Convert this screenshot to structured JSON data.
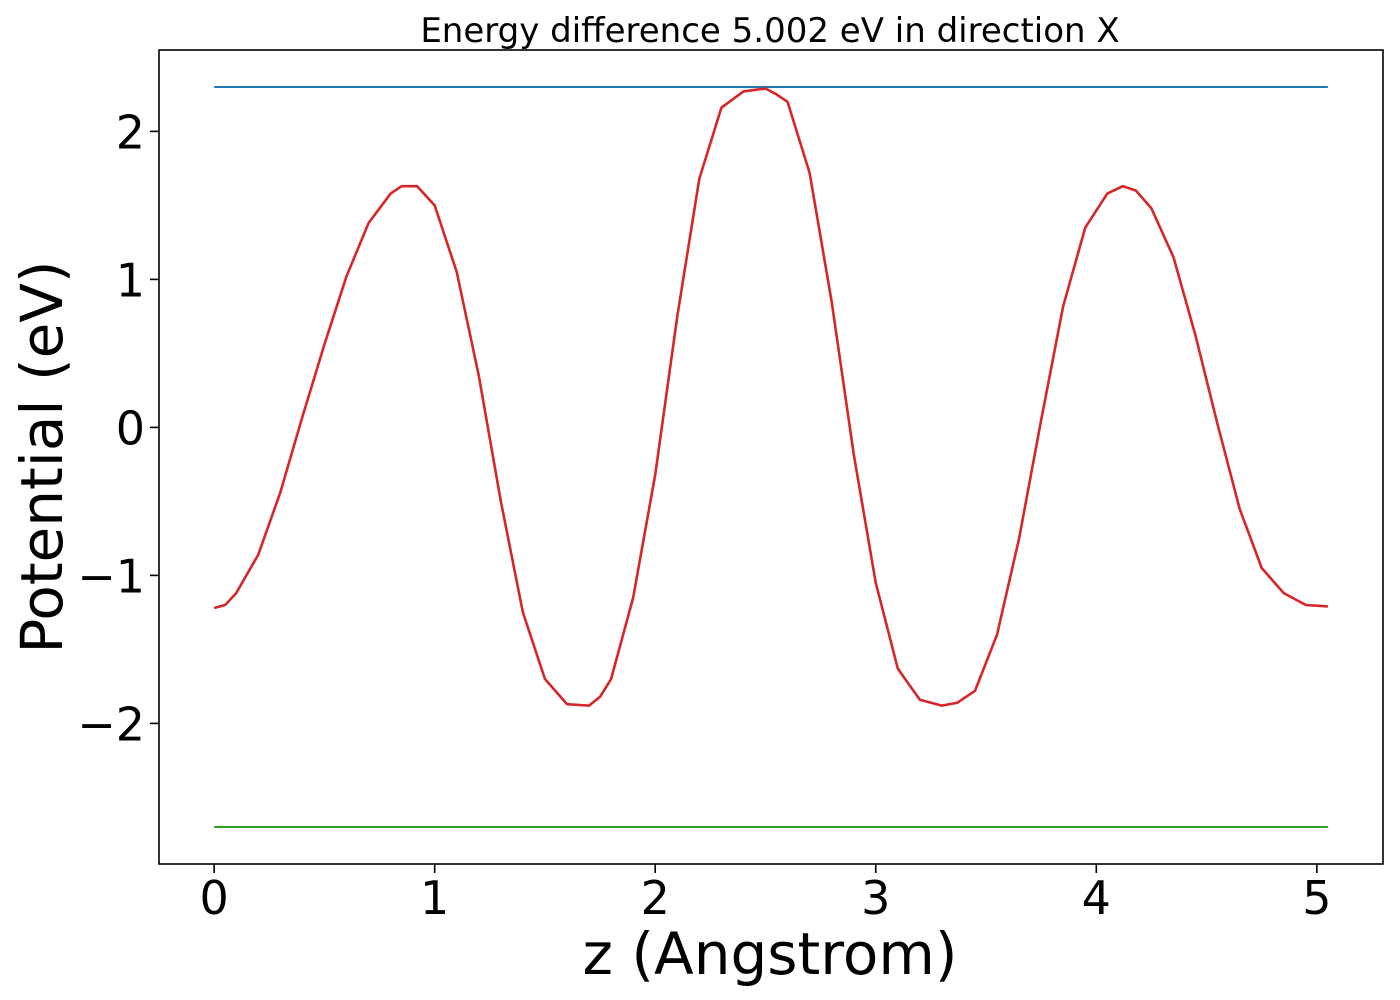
{
  "chart_data": {
    "type": "line",
    "title": "Energy difference 5.002 eV in direction X",
    "xlabel": "z (Angstrom)",
    "ylabel": "Potential (eV)",
    "xlim": [
      -0.25,
      5.3
    ],
    "ylim": [
      -2.95,
      2.55
    ],
    "x_ticks": [
      0,
      1,
      2,
      3,
      4,
      5
    ],
    "x_tick_labels": [
      "0",
      "1",
      "2",
      "3",
      "4",
      "5"
    ],
    "y_ticks": [
      -2,
      -1,
      0,
      1,
      2
    ],
    "y_tick_labels": [
      "−2",
      "−1",
      "0",
      "1",
      "2"
    ],
    "grid": false,
    "series": [
      {
        "color": "#1f77b4",
        "x": [
          0,
          5.05
        ],
        "y": [
          2.3,
          2.3
        ]
      },
      {
        "color": "#2ca02c",
        "x": [
          0,
          5.05
        ],
        "y": [
          -2.7,
          -2.7
        ]
      },
      {
        "color": "#d62728",
        "x": [
          0,
          0.05,
          0.1,
          0.2,
          0.3,
          0.4,
          0.5,
          0.6,
          0.7,
          0.8,
          0.85,
          0.92,
          1.0,
          1.1,
          1.2,
          1.3,
          1.4,
          1.5,
          1.6,
          1.7,
          1.75,
          1.8,
          1.9,
          2.0,
          2.1,
          2.2,
          2.3,
          2.4,
          2.5,
          2.55,
          2.6,
          2.7,
          2.8,
          2.9,
          3.0,
          3.1,
          3.2,
          3.3,
          3.37,
          3.45,
          3.55,
          3.65,
          3.75,
          3.85,
          3.95,
          4.05,
          4.12,
          4.18,
          4.25,
          4.35,
          4.45,
          4.55,
          4.65,
          4.75,
          4.85,
          4.95,
          5.05
        ],
        "y": [
          -1.22,
          -1.2,
          -1.12,
          -0.86,
          -0.44,
          0.07,
          0.56,
          1.02,
          1.38,
          1.58,
          1.63,
          1.63,
          1.5,
          1.05,
          0.35,
          -0.5,
          -1.25,
          -1.7,
          -1.87,
          -1.88,
          -1.82,
          -1.7,
          -1.15,
          -0.32,
          0.75,
          1.68,
          2.16,
          2.27,
          2.29,
          2.25,
          2.2,
          1.72,
          0.85,
          -0.18,
          -1.05,
          -1.63,
          -1.84,
          -1.88,
          -1.86,
          -1.78,
          -1.4,
          -0.75,
          0.05,
          0.82,
          1.35,
          1.58,
          1.63,
          1.6,
          1.48,
          1.15,
          0.62,
          0.02,
          -0.55,
          -0.95,
          -1.12,
          -1.2,
          -1.21
        ]
      }
    ]
  }
}
